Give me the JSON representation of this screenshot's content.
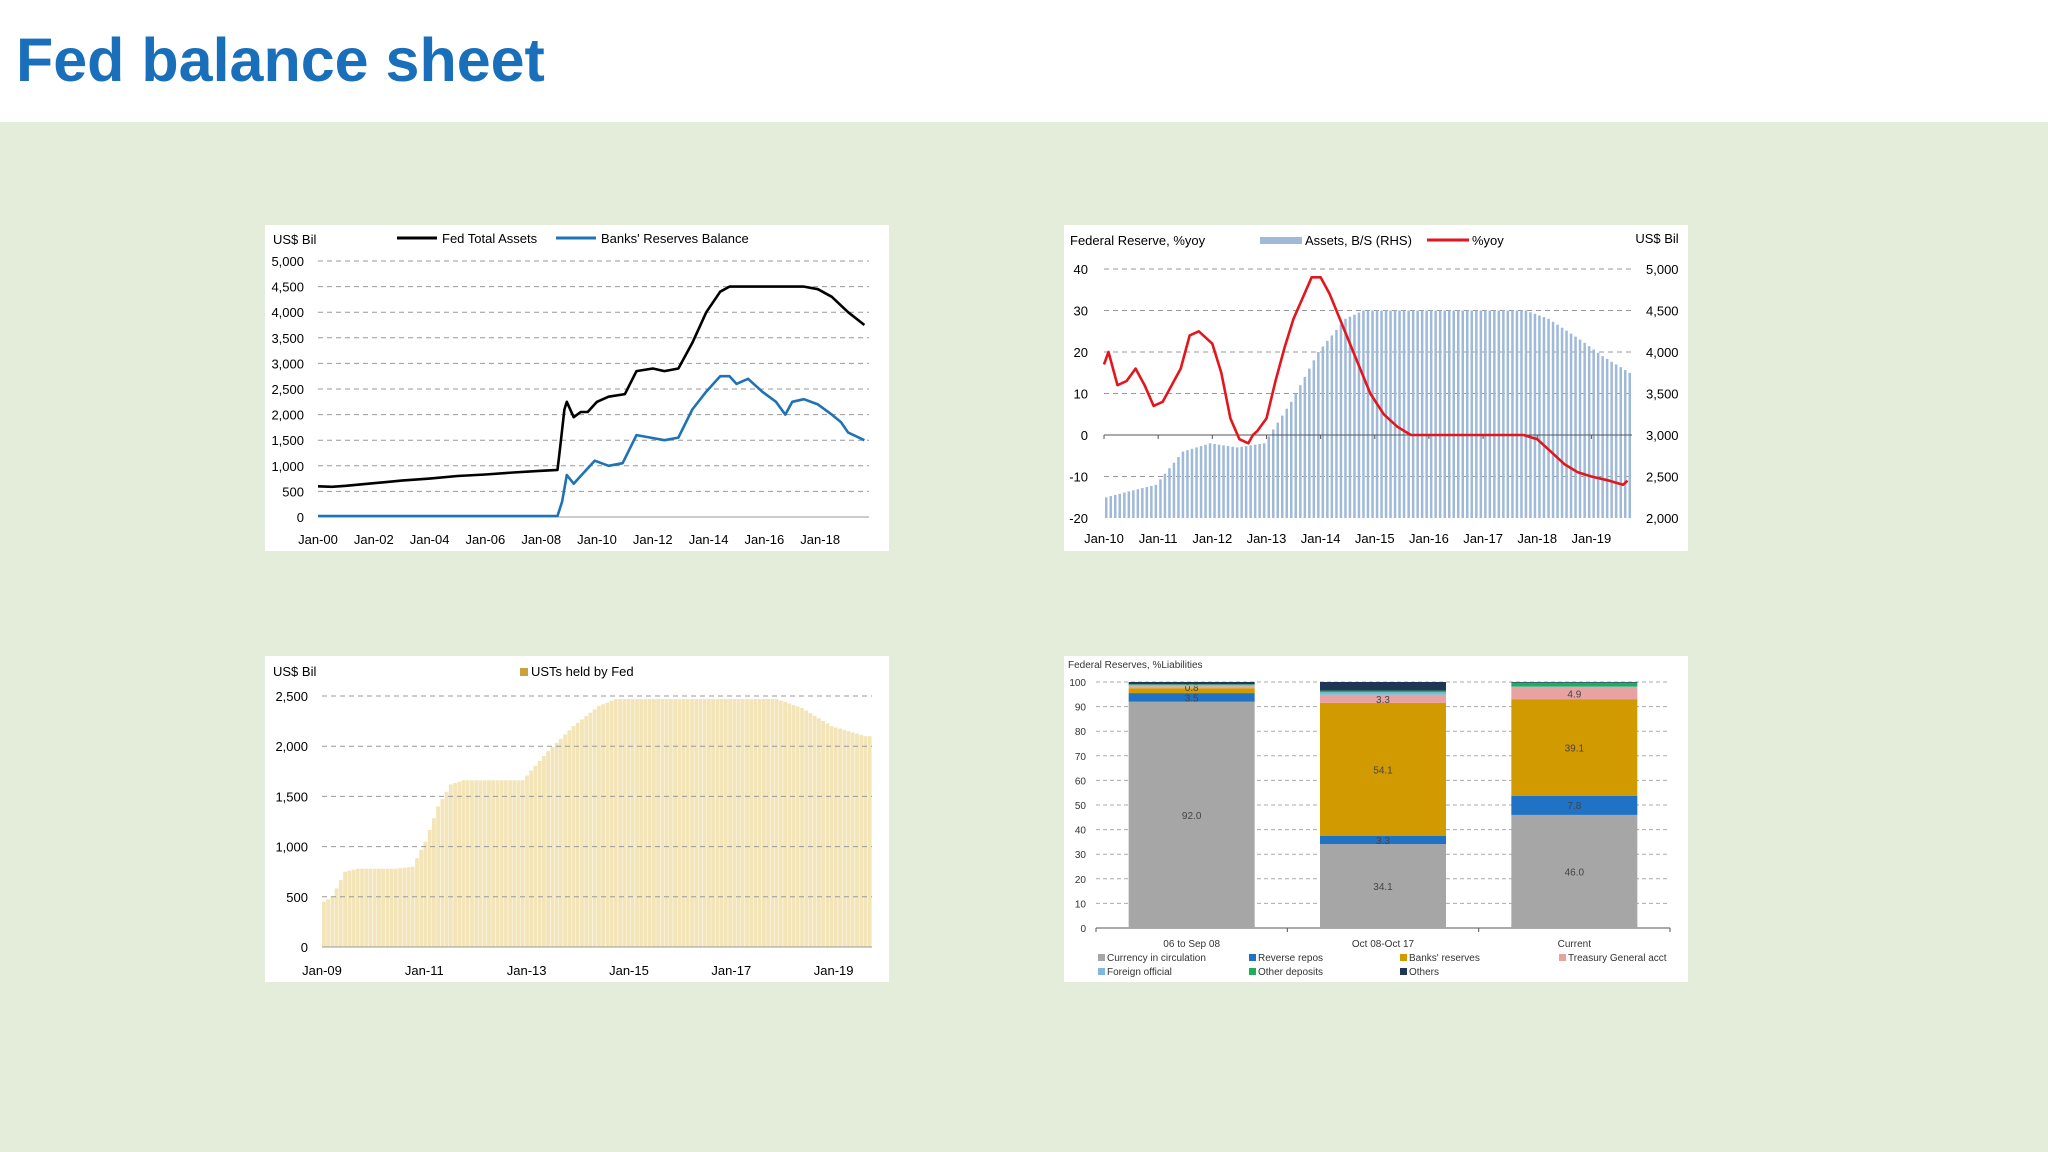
{
  "page": {
    "title": "Fed balance sheet"
  },
  "colors": {
    "title": "#1a6fba",
    "background": "#e3edda"
  },
  "chart_data": [
    {
      "id": "chart1",
      "type": "line",
      "unit_label": "US$ Bil",
      "x_ticks": [
        "Jan-00",
        "Jan-02",
        "Jan-04",
        "Jan-06",
        "Jan-08",
        "Jan-10",
        "Jan-12",
        "Jan-14",
        "Jan-16",
        "Jan-18"
      ],
      "x_range": [
        "2000-01",
        "2019-10"
      ],
      "ylim": [
        0,
        5000
      ],
      "y_ticks": [
        "0",
        "500",
        "1,000",
        "1,500",
        "2,000",
        "2,500",
        "3,000",
        "3,500",
        "4,000",
        "4,500",
        "5,000"
      ],
      "grid": "dashed horizontal",
      "legend_position": "top",
      "series": [
        {
          "name": "Fed Total Assets",
          "color": "#000000",
          "points": [
            [
              "2000-01",
              600
            ],
            [
              "2000-07",
              590
            ],
            [
              "2001-01",
              610
            ],
            [
              "2002-01",
              660
            ],
            [
              "2003-01",
              710
            ],
            [
              "2004-01",
              750
            ],
            [
              "2005-01",
              800
            ],
            [
              "2006-01",
              830
            ],
            [
              "2007-01",
              870
            ],
            [
              "2007-12",
              900
            ],
            [
              "2008-08",
              920
            ],
            [
              "2008-09",
              1300
            ],
            [
              "2008-11",
              2100
            ],
            [
              "2008-12",
              2250
            ],
            [
              "2009-03",
              1950
            ],
            [
              "2009-06",
              2050
            ],
            [
              "2009-09",
              2050
            ],
            [
              "2010-01",
              2250
            ],
            [
              "2010-06",
              2350
            ],
            [
              "2011-01",
              2400
            ],
            [
              "2011-06",
              2850
            ],
            [
              "2012-01",
              2900
            ],
            [
              "2012-06",
              2850
            ],
            [
              "2012-12",
              2900
            ],
            [
              "2013-06",
              3400
            ],
            [
              "2013-12",
              4000
            ],
            [
              "2014-06",
              4400
            ],
            [
              "2014-10",
              4500
            ],
            [
              "2015-06",
              4500
            ],
            [
              "2016-06",
              4500
            ],
            [
              "2017-06",
              4500
            ],
            [
              "2017-12",
              4450
            ],
            [
              "2018-06",
              4300
            ],
            [
              "2019-01",
              4000
            ],
            [
              "2019-08",
              3750
            ]
          ]
        },
        {
          "name": "Banks' Reserves Balance",
          "color": "#1f72b5",
          "points": [
            [
              "2000-01",
              20
            ],
            [
              "2008-08",
              20
            ],
            [
              "2008-10",
              300
            ],
            [
              "2008-12",
              820
            ],
            [
              "2009-03",
              650
            ],
            [
              "2009-06",
              800
            ],
            [
              "2009-12",
              1100
            ],
            [
              "2010-06",
              1000
            ],
            [
              "2010-12",
              1050
            ],
            [
              "2011-06",
              1600
            ],
            [
              "2011-12",
              1550
            ],
            [
              "2012-06",
              1500
            ],
            [
              "2012-12",
              1550
            ],
            [
              "2013-06",
              2100
            ],
            [
              "2013-12",
              2450
            ],
            [
              "2014-06",
              2750
            ],
            [
              "2014-10",
              2750
            ],
            [
              "2015-01",
              2600
            ],
            [
              "2015-06",
              2700
            ],
            [
              "2015-12",
              2450
            ],
            [
              "2016-06",
              2250
            ],
            [
              "2016-10",
              2000
            ],
            [
              "2017-01",
              2250
            ],
            [
              "2017-06",
              2300
            ],
            [
              "2017-12",
              2200
            ],
            [
              "2018-06",
              2000
            ],
            [
              "2018-10",
              1850
            ],
            [
              "2019-01",
              1650
            ],
            [
              "2019-08",
              1500
            ]
          ]
        }
      ]
    },
    {
      "id": "chart2",
      "type": "bar+line",
      "left_axis_label": "Federal Reserve, %yoy",
      "right_axis_label": "US$ Bil",
      "x_ticks": [
        "Jan-10",
        "Jan-11",
        "Jan-12",
        "Jan-13",
        "Jan-14",
        "Jan-15",
        "Jan-16",
        "Jan-17",
        "Jan-18",
        "Jan-19"
      ],
      "x_range": [
        "2010-01",
        "2019-10"
      ],
      "left_ylim": [
        -20,
        40
      ],
      "left_y_ticks": [
        "-20",
        "-10",
        "0",
        "10",
        "20",
        "30",
        "40"
      ],
      "right_ylim": [
        2000,
        5000
      ],
      "right_y_ticks": [
        "2,000",
        "2,500",
        "3,000",
        "3,500",
        "4,000",
        "4,500",
        "5,000"
      ],
      "grid": "dashed horizontal",
      "legend_position": "top",
      "series": [
        {
          "name": "Assets, B/S (RHS)",
          "type": "bar",
          "axis": "right",
          "color": "#9fb9d9",
          "points": [
            [
              "2010-01",
              2250
            ],
            [
              "2010-06",
              2320
            ],
            [
              "2010-12",
              2400
            ],
            [
              "2011-06",
              2800
            ],
            [
              "2011-12",
              2900
            ],
            [
              "2012-06",
              2850
            ],
            [
              "2012-12",
              2900
            ],
            [
              "2013-03",
              3150
            ],
            [
              "2013-06",
              3400
            ],
            [
              "2013-12",
              4000
            ],
            [
              "2014-06",
              4400
            ],
            [
              "2014-10",
              4500
            ],
            [
              "2015-06",
              4500
            ],
            [
              "2016-06",
              4500
            ],
            [
              "2017-06",
              4500
            ],
            [
              "2017-10",
              4500
            ],
            [
              "2018-03",
              4400
            ],
            [
              "2018-10",
              4150
            ],
            [
              "2019-03",
              3950
            ],
            [
              "2019-09",
              3750
            ]
          ]
        },
        {
          "name": "%yoy",
          "type": "line",
          "axis": "left",
          "color": "#e3161d",
          "points": [
            [
              "2010-01",
              17
            ],
            [
              "2010-02",
              20
            ],
            [
              "2010-04",
              12
            ],
            [
              "2010-06",
              13
            ],
            [
              "2010-08",
              16
            ],
            [
              "2010-10",
              12
            ],
            [
              "2010-12",
              7
            ],
            [
              "2011-02",
              8
            ],
            [
              "2011-04",
              12
            ],
            [
              "2011-06",
              16
            ],
            [
              "2011-08",
              24
            ],
            [
              "2011-10",
              25
            ],
            [
              "2011-11",
              24
            ],
            [
              "2012-01",
              22
            ],
            [
              "2012-03",
              15
            ],
            [
              "2012-05",
              4
            ],
            [
              "2012-07",
              -1
            ],
            [
              "2012-09",
              -2
            ],
            [
              "2012-10",
              0
            ],
            [
              "2012-11",
              1
            ],
            [
              "2013-01",
              4
            ],
            [
              "2013-03",
              13
            ],
            [
              "2013-05",
              21
            ],
            [
              "2013-07",
              28
            ],
            [
              "2013-09",
              33
            ],
            [
              "2013-11",
              38
            ],
            [
              "2014-01",
              38
            ],
            [
              "2014-03",
              34
            ],
            [
              "2014-06",
              26
            ],
            [
              "2014-09",
              18
            ],
            [
              "2014-12",
              10
            ],
            [
              "2015-03",
              5
            ],
            [
              "2015-06",
              2
            ],
            [
              "2015-09",
              0
            ],
            [
              "2016-01",
              0
            ],
            [
              "2016-06",
              0
            ],
            [
              "2017-01",
              0
            ],
            [
              "2017-06",
              0
            ],
            [
              "2017-10",
              0
            ],
            [
              "2018-01",
              -1
            ],
            [
              "2018-04",
              -4
            ],
            [
              "2018-07",
              -7
            ],
            [
              "2018-10",
              -9
            ],
            [
              "2019-01",
              -10
            ],
            [
              "2019-05",
              -11
            ],
            [
              "2019-08",
              -12
            ],
            [
              "2019-09",
              -11
            ]
          ]
        }
      ]
    },
    {
      "id": "chart3",
      "type": "area",
      "unit_label": "US$ Bil",
      "x_ticks": [
        "Jan-09",
        "Jan-11",
        "Jan-13",
        "Jan-15",
        "Jan-17",
        "Jan-19"
      ],
      "x_range": [
        "2009-01",
        "2019-10"
      ],
      "ylim": [
        0,
        2500
      ],
      "y_ticks": [
        "0",
        "500",
        "1,000",
        "1,500",
        "2,000",
        "2,500"
      ],
      "grid": "dashed horizontal",
      "legend_position": "top",
      "series": [
        {
          "name": "USTs held by Fed",
          "color": "#f3e5b8",
          "legend_color": "#c9a23b",
          "points": [
            [
              "2009-01",
              450
            ],
            [
              "2009-03",
              500
            ],
            [
              "2009-06",
              750
            ],
            [
              "2009-09",
              780
            ],
            [
              "2010-01",
              780
            ],
            [
              "2010-06",
              780
            ],
            [
              "2010-10",
              800
            ],
            [
              "2011-01",
              1050
            ],
            [
              "2011-04",
              1400
            ],
            [
              "2011-07",
              1620
            ],
            [
              "2011-10",
              1660
            ],
            [
              "2012-06",
              1660
            ],
            [
              "2012-12",
              1660
            ],
            [
              "2013-06",
              1950
            ],
            [
              "2013-12",
              2200
            ],
            [
              "2014-06",
              2400
            ],
            [
              "2014-10",
              2470
            ],
            [
              "2015-06",
              2470
            ],
            [
              "2016-06",
              2470
            ],
            [
              "2017-06",
              2470
            ],
            [
              "2017-12",
              2470
            ],
            [
              "2018-06",
              2380
            ],
            [
              "2019-01",
              2200
            ],
            [
              "2019-09",
              2100
            ]
          ]
        }
      ]
    },
    {
      "id": "chart4",
      "type": "bar",
      "stacked": true,
      "title": "Federal Reserves, %Liabilities",
      "categories": [
        "06 to Sep 08",
        "Oct 08-Oct 17",
        "Current"
      ],
      "ylim": [
        0,
        100
      ],
      "y_ticks": [
        "0",
        "10",
        "20",
        "30",
        "40",
        "50",
        "60",
        "70",
        "80",
        "90",
        "100"
      ],
      "grid": "dashed horizontal",
      "legend_position": "bottom",
      "series": [
        {
          "name": "Currency in circulation",
          "color": "#a6a6a6",
          "values": [
            92.0,
            34.1,
            46.0
          ],
          "labels": [
            "92.0",
            "34.1",
            "46.0"
          ]
        },
        {
          "name": "Reverse repos",
          "color": "#1f72c4",
          "values": [
            3.5,
            3.3,
            7.8
          ],
          "labels": [
            "3.5",
            "3.3",
            "7.8"
          ]
        },
        {
          "name": "Banks' reserves",
          "color": "#d19b00",
          "values": [
            2.0,
            54.1,
            39.1
          ],
          "labels": [
            "",
            "54.1",
            "39.1"
          ]
        },
        {
          "name": "Treasury General acct",
          "color": "#e8a2a2",
          "values": [
            0.8,
            3.3,
            4.9
          ],
          "labels": [
            "0.8",
            "3.3",
            "4.9"
          ]
        },
        {
          "name": "Foreign official",
          "color": "#7fb7dd",
          "values": [
            0.5,
            1.0,
            0.3
          ],
          "labels": [
            "",
            "",
            ""
          ]
        },
        {
          "name": "Other deposits",
          "color": "#1fae5a",
          "values": [
            0.3,
            0.7,
            1.6
          ],
          "labels": [
            "",
            "",
            ""
          ]
        },
        {
          "name": "Others",
          "color": "#1f3656",
          "values": [
            0.9,
            3.5,
            0.3
          ],
          "labels": [
            "",
            "",
            ""
          ]
        }
      ]
    }
  ]
}
